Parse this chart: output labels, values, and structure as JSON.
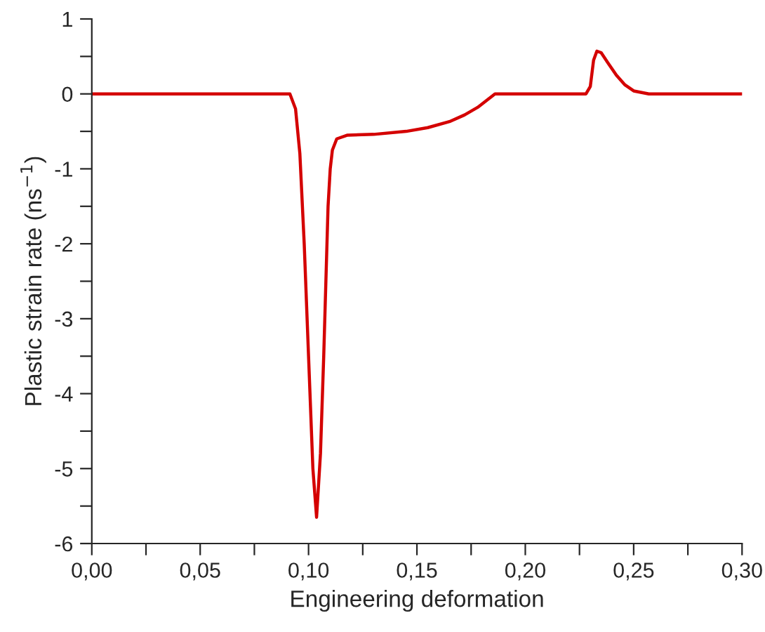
{
  "chart_data": {
    "type": "line",
    "xlabel": "Engineering deformation",
    "ylabel": "Plastic strain rate (ns$^{−1}$)",
    "series": [
      {
        "color": "#d40000",
        "x": [
          0,
          0.0914,
          0.094,
          0.096,
          0.098,
          0.1,
          0.102,
          0.1037,
          0.1055,
          0.107,
          0.108,
          0.109,
          0.11,
          0.111,
          0.113,
          0.118,
          0.13,
          0.145,
          0.155,
          0.165,
          0.172,
          0.178,
          0.186,
          0.228,
          0.23,
          0.2315,
          0.233,
          0.235,
          0.238,
          0.242,
          0.246,
          0.25,
          0.257,
          0.3
        ],
        "values": [
          0,
          0,
          -0.2,
          -0.8,
          -2.0,
          -3.5,
          -5.0,
          -5.65,
          -4.8,
          -3.5,
          -2.5,
          -1.5,
          -1.0,
          -0.75,
          -0.6,
          -0.55,
          -0.54,
          -0.5,
          -0.45,
          -0.37,
          -0.28,
          -0.18,
          0,
          0,
          0.1,
          0.45,
          0.57,
          0.55,
          0.42,
          0.25,
          0.12,
          0.04,
          0,
          0
        ]
      }
    ],
    "xlim": [
      0,
      0.3
    ],
    "ylim": [
      -6,
      1
    ],
    "xticks": [
      {
        "value": 0,
        "label": "0,00"
      },
      {
        "value": 0.025,
        "label": null
      },
      {
        "value": 0.05,
        "label": "0,05"
      },
      {
        "value": 0.075,
        "label": null
      },
      {
        "value": 0.1,
        "label": "0,10"
      },
      {
        "value": 0.125,
        "label": null
      },
      {
        "value": 0.15,
        "label": "0,15"
      },
      {
        "value": 0.175,
        "label": null
      },
      {
        "value": 0.2,
        "label": "0,20"
      },
      {
        "value": 0.225,
        "label": null
      },
      {
        "value": 0.25,
        "label": "0,25"
      },
      {
        "value": 0.275,
        "label": null
      },
      {
        "value": 0.3,
        "label": "0,30"
      }
    ],
    "yticks": [
      -6,
      {
        "value": -5.5,
        "label": null
      },
      -5,
      {
        "value": -4.5,
        "label": null
      },
      -4,
      {
        "value": -3.5,
        "label": null
      },
      -3,
      {
        "value": -2.5,
        "label": null
      },
      -2,
      {
        "value": -1.5,
        "label": null
      },
      -1,
      {
        "value": -0.5,
        "label": null
      },
      0,
      {
        "value": 0.5,
        "label": null
      },
      1
    ],
    "grid": false,
    "marker": "none",
    "line_style": "solid"
  }
}
